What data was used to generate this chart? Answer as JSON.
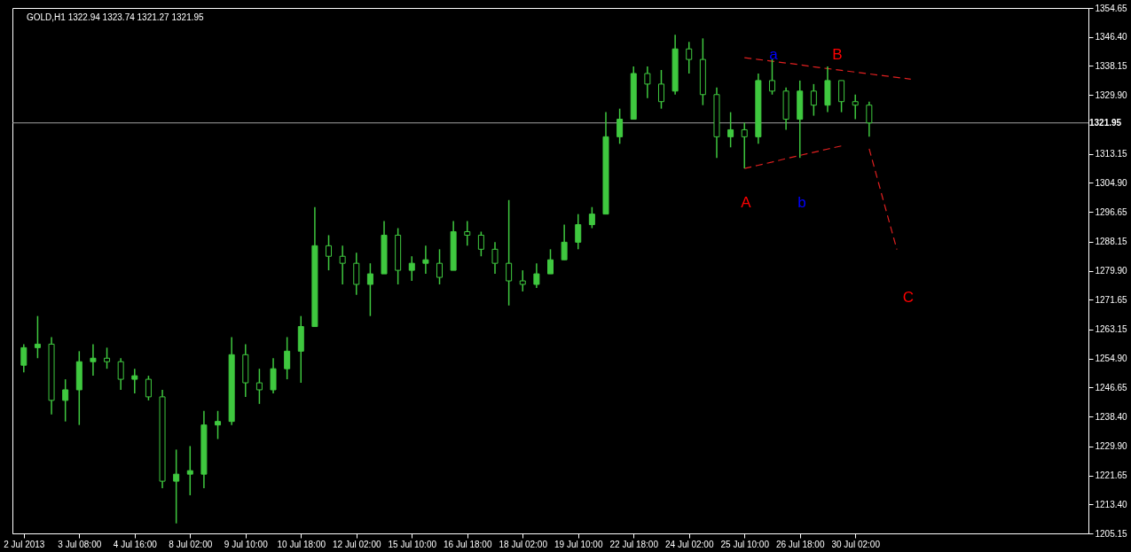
{
  "chart_data": {
    "type": "candlestick",
    "title": "GOLD,H1  1322.94 1323.74 1321.27 1321.95",
    "color": "#3fc83f",
    "categories": [
      "2 Jul 2013",
      null,
      null,
      null,
      "3 Jul 08:00",
      null,
      null,
      null,
      "4 Jul 16:00",
      null,
      null,
      null,
      "8 Jul 02:00",
      null,
      null,
      null,
      "9 Jul 10:00",
      null,
      null,
      null,
      "10 Jul 18:00",
      null,
      null,
      null,
      "12 Jul 02:00",
      null,
      null,
      null,
      "15 Jul 10:00",
      null,
      null,
      null,
      "16 Jul 18:00",
      null,
      null,
      null,
      "18 Jul 02:00",
      null,
      null,
      null,
      "19 Jul 10:00",
      null,
      null,
      null,
      "22 Jul 18:00",
      null,
      null,
      null,
      "24 Jul 02:00",
      null,
      null,
      null,
      "25 Jul 10:00",
      null,
      null,
      null,
      "26 Jul 18:00",
      null,
      null,
      null,
      "30 Jul 02:00",
      null,
      null,
      null,
      null,
      null,
      null,
      null,
      null,
      null,
      null,
      null,
      null,
      null,
      null,
      null,
      null
    ],
    "ohlc": [
      [
        1253,
        1259,
        1251,
        1258
      ],
      [
        1258,
        1267,
        1255,
        1259
      ],
      [
        1259,
        1261,
        1239,
        1243
      ],
      [
        1243,
        1249,
        1237,
        1246
      ],
      [
        1246,
        1257,
        1236,
        1254
      ],
      [
        1254,
        1259,
        1250,
        1255
      ],
      [
        1255,
        1258,
        1252,
        1254
      ],
      [
        1254,
        1255,
        1246,
        1249
      ],
      [
        1249,
        1252,
        1245,
        1250
      ],
      [
        1249,
        1250,
        1243,
        1244
      ],
      [
        1244,
        1246,
        1218,
        1220
      ],
      [
        1220,
        1229,
        1208,
        1222
      ],
      [
        1222,
        1230,
        1216,
        1223
      ],
      [
        1222,
        1240,
        1218,
        1236
      ],
      [
        1236,
        1240,
        1232,
        1237
      ],
      [
        1237,
        1261,
        1236,
        1256
      ],
      [
        1256,
        1259,
        1244,
        1248
      ],
      [
        1248,
        1252,
        1242,
        1246
      ],
      [
        1246,
        1255,
        1245,
        1252
      ],
      [
        1252,
        1261,
        1249,
        1257
      ],
      [
        1257,
        1267,
        1248,
        1264
      ],
      [
        1264,
        1298,
        1264,
        1287
      ],
      [
        1287,
        1290,
        1280,
        1284
      ],
      [
        1284,
        1287,
        1276,
        1282
      ],
      [
        1282,
        1285,
        1273,
        1276
      ],
      [
        1276,
        1282,
        1267,
        1279
      ],
      [
        1279,
        1294,
        1279,
        1290
      ],
      [
        1290,
        1292,
        1276,
        1280
      ],
      [
        1280,
        1284,
        1277,
        1282
      ],
      [
        1282,
        1287,
        1279,
        1283
      ],
      [
        1282,
        1286,
        1276,
        1278
      ],
      [
        1280,
        1294,
        1280,
        1291
      ],
      [
        1291,
        1294,
        1287,
        1290
      ],
      [
        1290,
        1291,
        1284,
        1286
      ],
      [
        1286,
        1288,
        1279,
        1282
      ],
      [
        1282,
        1300,
        1270,
        1277
      ],
      [
        1277,
        1280,
        1274,
        1276
      ],
      [
        1276,
        1282,
        1275,
        1279
      ],
      [
        1279,
        1286,
        1279,
        1283
      ],
      [
        1283,
        1293,
        1283,
        1288
      ],
      [
        1288,
        1296,
        1286,
        1293
      ],
      [
        1293,
        1298,
        1292,
        1296
      ],
      [
        1296,
        1325,
        1296,
        1318
      ],
      [
        1318,
        1326,
        1316,
        1323
      ],
      [
        1323,
        1338,
        1323,
        1336
      ],
      [
        1336,
        1338,
        1329,
        1333
      ],
      [
        1333,
        1337,
        1326,
        1328
      ],
      [
        1331,
        1347,
        1330,
        1343
      ],
      [
        1343,
        1345,
        1336,
        1340
      ],
      [
        1340,
        1346,
        1327,
        1330
      ],
      [
        1330,
        1332,
        1312,
        1318
      ],
      [
        1318,
        1325,
        1315,
        1320
      ],
      [
        1320,
        1322,
        1309,
        1318
      ],
      [
        1318,
        1336,
        1316,
        1334
      ],
      [
        1334,
        1340,
        1330,
        1331
      ],
      [
        1331,
        1332,
        1320,
        1323
      ],
      [
        1323,
        1334,
        1312,
        1331
      ],
      [
        1331,
        1333,
        1324,
        1327
      ],
      [
        1327,
        1338,
        1325,
        1334
      ],
      [
        1334,
        1334,
        1325,
        1328
      ],
      [
        1328,
        1330,
        1323,
        1327
      ],
      [
        1327,
        1328,
        1318,
        1321.95
      ],
      null,
      null,
      null,
      null,
      null,
      null,
      null,
      null,
      null,
      null,
      null,
      null,
      null,
      null,
      null
    ],
    "series": [
      {
        "type": "line",
        "color": "#e02020",
        "line_style": "dashed",
        "values": [
          null,
          null,
          null,
          null,
          null,
          null,
          null,
          null,
          null,
          null,
          null,
          null,
          null,
          null,
          null,
          null,
          null,
          null,
          null,
          null,
          null,
          null,
          null,
          null,
          null,
          null,
          null,
          null,
          null,
          null,
          null,
          null,
          null,
          null,
          null,
          null,
          null,
          null,
          null,
          null,
          null,
          null,
          null,
          null,
          null,
          null,
          null,
          null,
          null,
          null,
          null,
          null,
          1340.5,
          1340.0,
          1339.5,
          1339.0,
          1338.5,
          1337.9,
          1337.4,
          1336.9,
          1336.4,
          1335.9,
          1335.4,
          1334.9,
          1334.4,
          null,
          null,
          null,
          null,
          null,
          null,
          null,
          null,
          null,
          null,
          null,
          null
        ]
      },
      {
        "type": "line",
        "color": "#e02020",
        "line_style": "dashed",
        "values": [
          null,
          null,
          null,
          null,
          null,
          null,
          null,
          null,
          null,
          null,
          null,
          null,
          null,
          null,
          null,
          null,
          null,
          null,
          null,
          null,
          null,
          null,
          null,
          null,
          null,
          null,
          null,
          null,
          null,
          null,
          null,
          null,
          null,
          null,
          null,
          null,
          null,
          null,
          null,
          null,
          null,
          null,
          null,
          null,
          null,
          null,
          null,
          null,
          null,
          null,
          null,
          null,
          1309.0,
          1309.9,
          1310.8,
          1311.8,
          1312.7,
          1313.6,
          1314.5,
          1315.4,
          null,
          null,
          null,
          null,
          null,
          null,
          null,
          null,
          null,
          null,
          null,
          null,
          null,
          null,
          null,
          null,
          null
        ]
      },
      {
        "type": "line",
        "color": "#e02020",
        "line_style": "dashed",
        "values": [
          null,
          null,
          null,
          null,
          null,
          null,
          null,
          null,
          null,
          null,
          null,
          null,
          null,
          null,
          null,
          null,
          null,
          null,
          null,
          null,
          null,
          null,
          null,
          null,
          null,
          null,
          null,
          null,
          null,
          null,
          null,
          null,
          null,
          null,
          null,
          null,
          null,
          null,
          null,
          null,
          null,
          null,
          null,
          null,
          null,
          null,
          null,
          null,
          null,
          null,
          null,
          null,
          null,
          null,
          null,
          null,
          null,
          null,
          null,
          null,
          null,
          1314.6,
          1300.2,
          1285.9,
          null,
          null,
          null,
          null,
          null,
          null,
          null,
          null,
          null,
          null,
          null,
          null,
          null
        ]
      }
    ],
    "annotations": [
      "a",
      "B",
      "A",
      "b",
      "C"
    ],
    "ref_lines": [
      {
        "axis": "y",
        "value": 1321.95,
        "label": "1321.95",
        "color": "#a0a0a0"
      }
    ],
    "ylim": [
      1205.15,
      1354.65
    ],
    "yticks": [
      1205.15,
      {
        "value": 1213.4,
        "label": "1213.40"
      },
      1221.65,
      {
        "value": 1229.9,
        "label": "1229.90"
      },
      {
        "value": 1238.4,
        "label": "1238.40"
      },
      1246.65,
      {
        "value": 1254.9,
        "label": "1254.90"
      },
      1263.15,
      1271.65,
      {
        "value": 1279.9,
        "label": "1279.90"
      },
      1288.15,
      1296.65,
      {
        "value": 1304.9,
        "label": "1304.90"
      },
      1313.15,
      {
        "value": 1329.9,
        "label": "1329.90"
      },
      1338.15,
      {
        "value": 1346.4,
        "label": "1346.40"
      },
      1354.65
    ],
    "grid": false
  }
}
